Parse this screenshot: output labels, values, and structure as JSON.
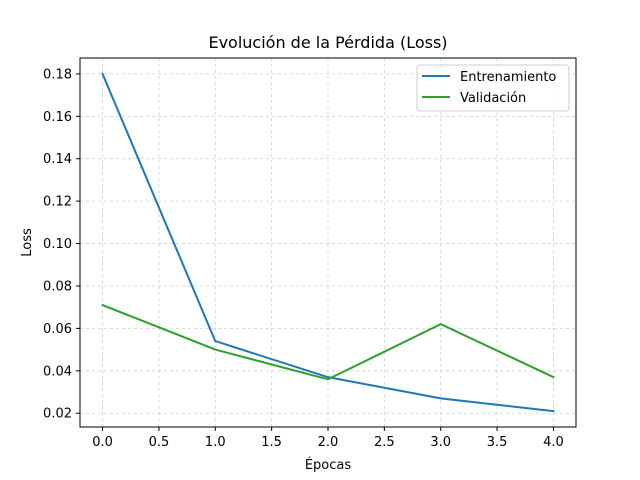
{
  "chart_data": {
    "type": "line",
    "title": "Evolución de la Pérdida (Loss)",
    "xlabel": "Épocas",
    "ylabel": "Loss",
    "xlim": [
      -0.2,
      4.2
    ],
    "ylim": [
      0.0135,
      0.1875
    ],
    "xticks": [
      "0.0",
      "0.5",
      "1.0",
      "1.5",
      "2.0",
      "2.5",
      "3.0",
      "3.5",
      "4.0"
    ],
    "yticks": [
      "0.02",
      "0.04",
      "0.06",
      "0.08",
      "0.10",
      "0.12",
      "0.14",
      "0.16",
      "0.18"
    ],
    "grid": true,
    "legend_position": "top-right",
    "x": [
      0,
      1,
      2,
      3,
      4
    ],
    "series": [
      {
        "name": "Entrenamiento",
        "color": "#1f77b4",
        "values": [
          0.18,
          0.054,
          0.037,
          0.027,
          0.021
        ]
      },
      {
        "name": "Validación",
        "color": "#2ca02c",
        "values": [
          0.071,
          0.05,
          0.036,
          0.062,
          0.037
        ]
      }
    ]
  }
}
